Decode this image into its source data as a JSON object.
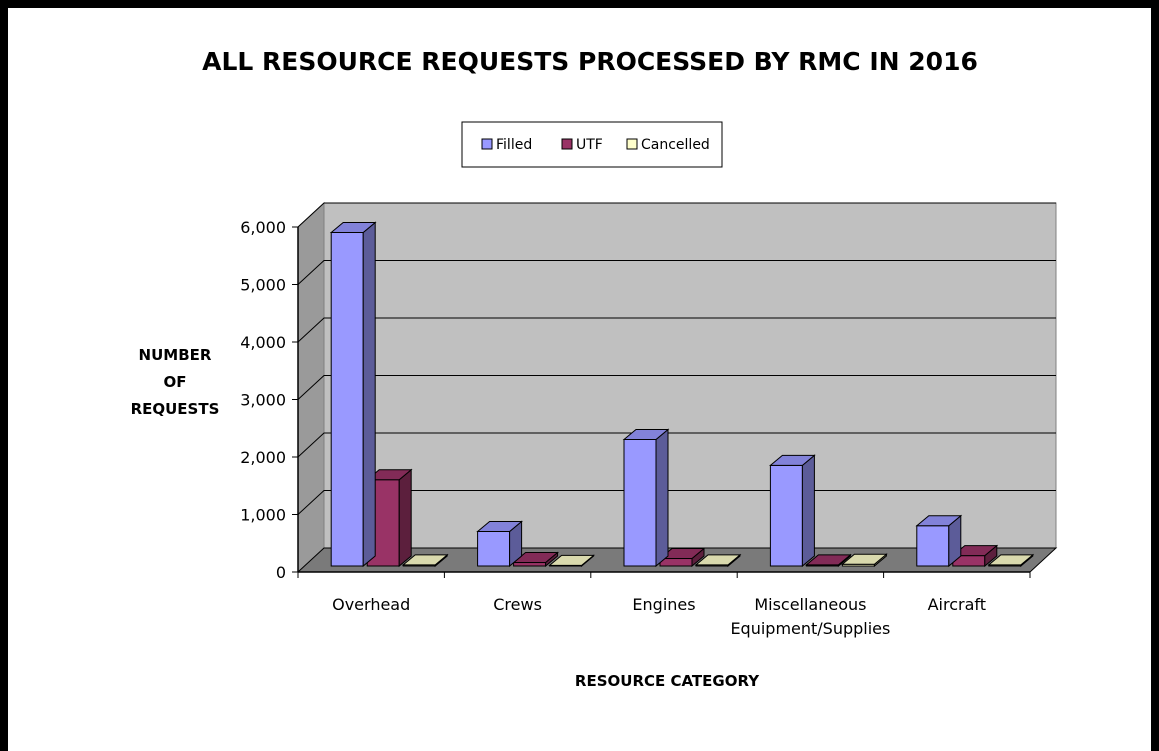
{
  "chart_data": {
    "type": "bar",
    "title": "ALL RESOURCE REQUESTS PROCESSED BY RMC IN 2016",
    "xlabel": "RESOURCE CATEGORY",
    "ylabel_lines": [
      "NUMBER",
      "OF",
      "REQUESTS"
    ],
    "ylim": [
      0,
      6000
    ],
    "yticks": [
      0,
      1000,
      2000,
      3000,
      4000,
      5000,
      6000
    ],
    "ytick_labels": [
      "0",
      "1,000",
      "2,000",
      "3,000",
      "4,000",
      "5,000",
      "6,000"
    ],
    "categories": [
      [
        "Overhead"
      ],
      [
        "Crews"
      ],
      [
        "Engines"
      ],
      [
        "Miscellaneous",
        "Equipment/Supplies"
      ],
      [
        "Aircraft"
      ]
    ],
    "series": [
      {
        "name": "Filled",
        "color": "#9999ff",
        "values": [
          5800,
          600,
          2200,
          1750,
          700
        ]
      },
      {
        "name": "UTF",
        "color": "#993366",
        "values": [
          1500,
          60,
          130,
          20,
          180
        ]
      },
      {
        "name": "Cancelled",
        "color": "#ffffcc",
        "values": [
          20,
          10,
          20,
          30,
          20
        ]
      }
    ],
    "grid": true,
    "legend_position": "top"
  }
}
